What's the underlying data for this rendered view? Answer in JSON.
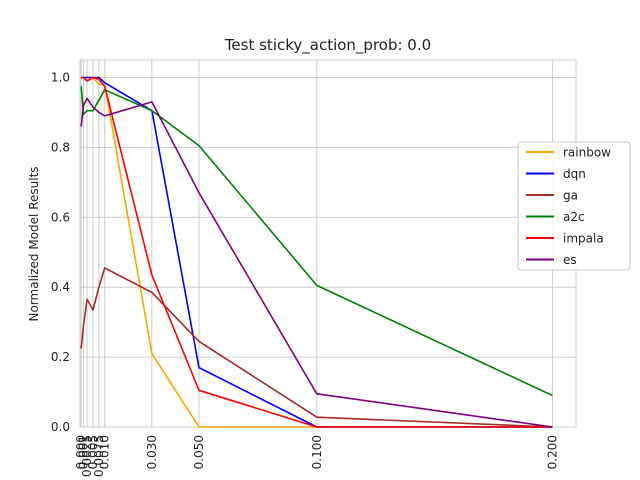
{
  "chart_data": {
    "type": "line",
    "title": "Test sticky_action_prob: 0.0",
    "xlabel": "",
    "ylabel": "Normalized Model Results",
    "x": [
      0.0,
      0.001,
      0.0025,
      0.005,
      0.0075,
      0.01,
      0.03,
      0.05,
      0.1,
      0.2
    ],
    "x_tick_values": [
      0.0,
      0.001,
      0.0025,
      0.005,
      0.0075,
      0.01,
      0.03,
      0.05,
      0.1,
      0.2
    ],
    "x_tick_labels": [
      "0.000",
      "0.001",
      "0.0025",
      "0.005",
      "0.0075",
      "0.010",
      "0.030",
      "0.050",
      "0.100",
      "0.200"
    ],
    "xlim": [
      -0.0005,
      0.21
    ],
    "ylim": [
      0.0,
      1.05
    ],
    "y_ticks": [
      0.0,
      0.2,
      0.4,
      0.6,
      0.8,
      1.0
    ],
    "y_tick_labels": [
      "0.0",
      "0.2",
      "0.4",
      "0.6",
      "0.8",
      "1.0"
    ],
    "grid": true,
    "legend_position": "center-right",
    "series": [
      {
        "name": "rainbow",
        "color": "#FFA500",
        "values": [
          1.0,
          1.0,
          1.0,
          1.0,
          0.98,
          0.98,
          0.21,
          0.0,
          0.0,
          0.0
        ]
      },
      {
        "name": "dqn",
        "color": "#0000FF",
        "values": [
          1.0,
          1.0,
          1.0,
          1.0,
          1.0,
          0.985,
          0.905,
          0.17,
          0.0,
          0.0
        ]
      },
      {
        "name": "ga",
        "color": "#A52A2A",
        "values": [
          0.225,
          0.29,
          0.365,
          0.335,
          0.4,
          0.455,
          0.385,
          0.245,
          0.028,
          0.0
        ]
      },
      {
        "name": "a2c",
        "color": "#008000",
        "values": [
          0.975,
          0.895,
          0.905,
          0.905,
          0.935,
          0.965,
          0.905,
          0.805,
          0.405,
          0.09
        ]
      },
      {
        "name": "impala",
        "color": "#FF0000",
        "values": [
          1.0,
          1.0,
          0.99,
          1.0,
          0.995,
          0.975,
          0.435,
          0.105,
          0.0,
          0.0
        ]
      },
      {
        "name": "es",
        "color": "#800080",
        "values": [
          0.86,
          0.92,
          0.94,
          0.915,
          0.9,
          0.89,
          0.93,
          0.67,
          0.095,
          0.0
        ]
      }
    ]
  }
}
